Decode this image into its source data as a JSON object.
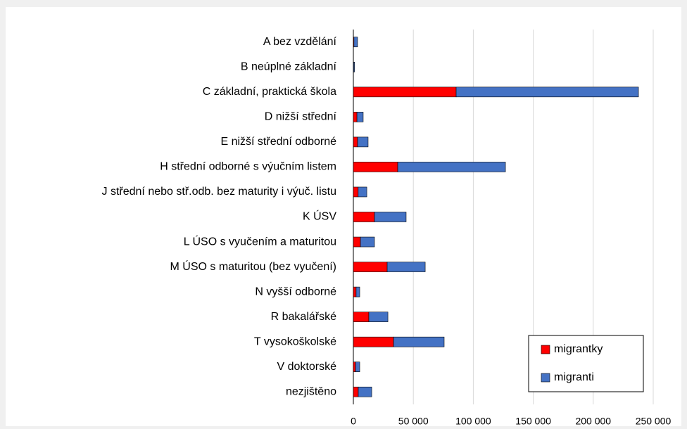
{
  "chart_data": {
    "type": "stacked-bar-horizontal",
    "categories": [
      "A bez vzdělání",
      "B neúplné základní",
      "C základní, praktická škola",
      "D nižší střední",
      "E nižší střední odborné",
      "H střední odborné s výučním listem",
      "J střední nebo stř.odb. bez maturity i výuč. listu",
      "K ÚSV",
      "L ÚSO s vyučením a maturitou",
      "M ÚSO s maturitou (bez vyučení)",
      "N vyšší odborné",
      "R bakalářské",
      "T vysokoškolské",
      "V doktorské",
      "nezjištěno"
    ],
    "series": [
      {
        "name": "migrantky",
        "color": "#ff0000",
        "values": [
          500,
          200,
          85700,
          3000,
          3500,
          37000,
          4000,
          17600,
          5900,
          28200,
          2300,
          12900,
          33500,
          1800,
          4100
        ]
      },
      {
        "name": "migranti",
        "color": "#4472c4",
        "values": [
          3000,
          800,
          152000,
          5200,
          8800,
          89800,
          7200,
          26400,
          11700,
          31700,
          3000,
          15900,
          42200,
          3500,
          11200
        ]
      }
    ],
    "xlim": [
      0,
      250000
    ],
    "xticks": [
      0,
      {
        "value": 50000,
        "label": "50 000"
      },
      {
        "value": 100000,
        "label": "100 000"
      },
      {
        "value": 150000,
        "label": "150 000"
      },
      {
        "value": 200000,
        "label": "200 000"
      },
      {
        "value": 250000,
        "label": "250 000"
      }
    ],
    "grid": true,
    "legend": "lower right"
  }
}
